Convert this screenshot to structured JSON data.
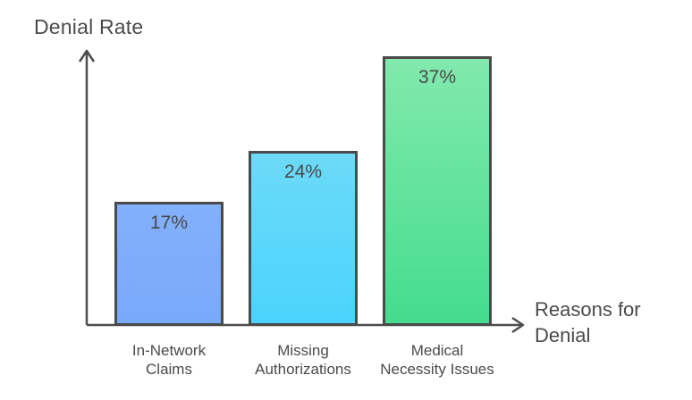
{
  "chart_data": {
    "type": "bar",
    "title": "",
    "ylabel": "Denial Rate",
    "xlabel": "Reasons for Denial",
    "categories": [
      "In-Network Claims",
      "Missing Authorizations",
      "Medical Necessity Issues"
    ],
    "values": [
      17,
      24,
      37
    ],
    "value_labels": [
      "17%",
      "24%",
      "37%"
    ],
    "ylim": [
      0,
      40
    ],
    "grid": false,
    "legend": false,
    "bar_colors": [
      {
        "top": "#82b0fb",
        "bottom": "#79a9fa"
      },
      {
        "top": "#6cdaf8",
        "bottom": "#4bd3fd"
      },
      {
        "top": "#82e9ad",
        "bottom": "#44dc8f"
      }
    ],
    "bar_border_color": "#4a4a4a"
  },
  "labels": {
    "y_axis": "Denial Rate",
    "x_axis_line1": "Reasons for",
    "x_axis_line2": "Denial"
  },
  "bars": [
    {
      "value_label": "17%",
      "category_line1": "In-Network",
      "category_line2": "Claims"
    },
    {
      "value_label": "24%",
      "category_line1": "Missing",
      "category_line2": "Authorizations"
    },
    {
      "value_label": "37%",
      "category_line1": "Medical",
      "category_line2": "Necessity Issues"
    }
  ],
  "colors": {
    "axis": "#4d4d4d",
    "text": "#4a4a4a",
    "background": "#ffffff"
  }
}
